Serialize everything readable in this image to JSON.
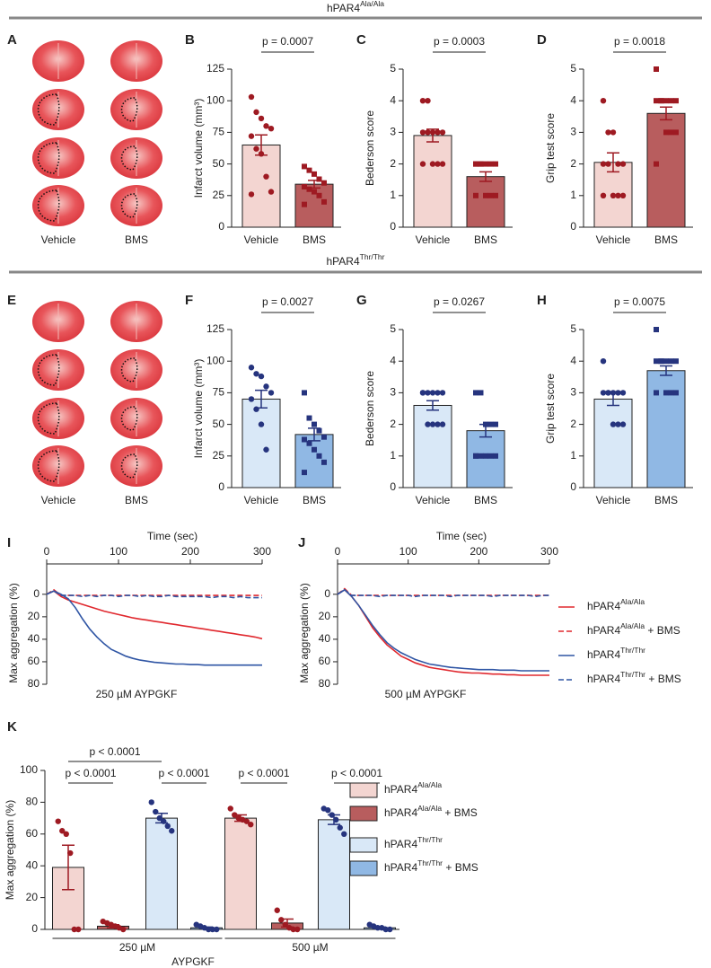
{
  "section_titles": [
    "hPAR4 Ala/Ala",
    "hPAR4 Thr/Thr"
  ],
  "image_panels": [
    {
      "panel": "A",
      "labels": [
        "Vehicle",
        "BMS"
      ]
    },
    {
      "panel": "E",
      "labels": [
        "Vehicle",
        "BMS"
      ]
    }
  ],
  "chart_data": [
    {
      "type": "bar",
      "panel": "B",
      "ylabel": "Infarct volume (mm³)",
      "categories": [
        "Vehicle",
        "BMS"
      ],
      "values": [
        65,
        34
      ],
      "errors": [
        8,
        3
      ],
      "points": [
        [
          103,
          91,
          86,
          80,
          78,
          72,
          62,
          58,
          40,
          28,
          26
        ],
        [
          48,
          45,
          42,
          38,
          35,
          32,
          30,
          28,
          25,
          20,
          18
        ]
      ],
      "colors": [
        "#f3d5d1",
        "#b85d5e"
      ],
      "point_color": "#9e1a22",
      "ylim": [
        0,
        125
      ],
      "yticks": [
        0,
        25,
        50,
        75,
        100,
        125
      ],
      "annotation": "p = 0.0007"
    },
    {
      "type": "bar",
      "panel": "C",
      "ylabel": "Bederson score",
      "categories": [
        "Vehicle",
        "BMS"
      ],
      "values": [
        2.9,
        1.6
      ],
      "errors": [
        0.2,
        0.15
      ],
      "points": [
        [
          4,
          4,
          3,
          3,
          3,
          3,
          3,
          2,
          2,
          2,
          2
        ],
        [
          2,
          2,
          2,
          2,
          2,
          2,
          2,
          1,
          1,
          1,
          1
        ]
      ],
      "colors": [
        "#f3d5d1",
        "#b85d5e"
      ],
      "point_color": "#9e1a22",
      "ylim": [
        0,
        5
      ],
      "yticks": [
        0,
        1,
        2,
        3,
        4,
        5
      ],
      "annotation": "p = 0.0003"
    },
    {
      "type": "bar",
      "panel": "D",
      "ylabel": "Grip test score",
      "categories": [
        "Vehicle",
        "BMS"
      ],
      "values": [
        2.05,
        3.6
      ],
      "errors": [
        0.3,
        0.2
      ],
      "points": [
        [
          4,
          3,
          3,
          2,
          2,
          2,
          2,
          1,
          1,
          1,
          1
        ],
        [
          5,
          4,
          4,
          4,
          4,
          4,
          4,
          3,
          3,
          3,
          2
        ]
      ],
      "colors": [
        "#f3d5d1",
        "#b85d5e"
      ],
      "point_color": "#9e1a22",
      "ylim": [
        0,
        5
      ],
      "yticks": [
        0,
        1,
        2,
        3,
        4,
        5
      ],
      "annotation": "p = 0.0018"
    },
    {
      "type": "bar",
      "panel": "F",
      "ylabel": "Infarct volume (mm³)",
      "categories": [
        "Vehicle",
        "BMS"
      ],
      "values": [
        70,
        42
      ],
      "errors": [
        7,
        5
      ],
      "points": [
        [
          95,
          90,
          88,
          80,
          75,
          70,
          62,
          50,
          30
        ],
        [
          75,
          55,
          50,
          45,
          40,
          38,
          35,
          30,
          25,
          20,
          12
        ]
      ],
      "colors": [
        "#d9e8f7",
        "#90b8e4"
      ],
      "point_color": "#26347e",
      "ylim": [
        0,
        125
      ],
      "yticks": [
        0,
        25,
        50,
        75,
        100,
        125
      ],
      "annotation": "p = 0.0027"
    },
    {
      "type": "bar",
      "panel": "G",
      "ylabel": "Bederson score",
      "categories": [
        "Vehicle",
        "BMS"
      ],
      "values": [
        2.6,
        1.8
      ],
      "errors": [
        0.15,
        0.2
      ],
      "points": [
        [
          3,
          3,
          3,
          3,
          3,
          3,
          2,
          2,
          2,
          2
        ],
        [
          3,
          3,
          2,
          2,
          2,
          1,
          1,
          1,
          1,
          1,
          1
        ]
      ],
      "colors": [
        "#d9e8f7",
        "#90b8e4"
      ],
      "point_color": "#26347e",
      "ylim": [
        0,
        5
      ],
      "yticks": [
        0,
        1,
        2,
        3,
        4,
        5
      ],
      "annotation": "p = 0.0267"
    },
    {
      "type": "bar",
      "panel": "H",
      "ylabel": "Grip test score",
      "categories": [
        "Vehicle",
        "BMS"
      ],
      "values": [
        2.8,
        3.7
      ],
      "errors": [
        0.2,
        0.15
      ],
      "points": [
        [
          4,
          3,
          3,
          3,
          3,
          3,
          3,
          2,
          2,
          2
        ],
        [
          5,
          4,
          4,
          4,
          4,
          4,
          4,
          3,
          3,
          3,
          3
        ]
      ],
      "colors": [
        "#d9e8f7",
        "#90b8e4"
      ],
      "point_color": "#26347e",
      "ylim": [
        0,
        5
      ],
      "yticks": [
        0,
        1,
        2,
        3,
        4,
        5
      ],
      "annotation": "p = 0.0075"
    },
    {
      "type": "line",
      "panel": "I",
      "xlabel": "Time  (sec)",
      "ylabel": "Max aggregation (%)",
      "subtitle": "250 µM AYPGKF",
      "x": [
        0,
        10,
        20,
        30,
        40,
        50,
        60,
        70,
        80,
        90,
        100,
        110,
        120,
        130,
        140,
        150,
        160,
        170,
        180,
        190,
        200,
        210,
        220,
        230,
        240,
        250,
        260,
        270,
        280,
        290,
        300
      ],
      "xlim": [
        0,
        300
      ],
      "xticks": [
        0,
        100,
        200,
        300
      ],
      "ylim": [
        -27,
        80
      ],
      "y_inverted": true,
      "yticks": [
        0,
        20,
        40,
        60,
        80
      ],
      "series": [
        {
          "color": "#e0282e",
          "dashed": false,
          "values": [
            0,
            -3,
            2,
            5,
            7,
            9,
            11,
            13,
            15,
            16.5,
            18,
            19.5,
            21,
            22,
            23,
            24,
            25,
            26,
            27,
            28,
            29,
            30,
            31,
            32,
            33,
            34,
            35,
            36,
            37,
            38,
            39.5
          ]
        },
        {
          "color": "#e0282e",
          "dashed": true,
          "values": [
            0,
            -4,
            1,
            1,
            1,
            1,
            1,
            1,
            1,
            1,
            1,
            1,
            1,
            1,
            1,
            1,
            1,
            1,
            1,
            1,
            1,
            1,
            1,
            1,
            1,
            1,
            1,
            1,
            1,
            1,
            1
          ]
        },
        {
          "color": "#2f55a4",
          "dashed": false,
          "values": [
            0,
            -3,
            0,
            4,
            12,
            22,
            31,
            38,
            44,
            49,
            52,
            55,
            57,
            58.5,
            59.5,
            60.5,
            61,
            61.5,
            62,
            62,
            62.5,
            62.5,
            63,
            63,
            63,
            63,
            63,
            63,
            63,
            63,
            63
          ]
        },
        {
          "color": "#2f55a4",
          "dashed": true,
          "values": [
            0,
            -3,
            1,
            1,
            1,
            2,
            1,
            2,
            1,
            1,
            2,
            1,
            1,
            2,
            1,
            2,
            2,
            1,
            2,
            2,
            2,
            2,
            2,
            3,
            2,
            2,
            3,
            2,
            3,
            3,
            3
          ]
        }
      ]
    },
    {
      "type": "line",
      "panel": "J",
      "xlabel": "Time  (sec)",
      "ylabel": "Max aggregation (%)",
      "subtitle": "500 µM AYPGKF",
      "x": [
        0,
        10,
        20,
        30,
        40,
        50,
        60,
        70,
        80,
        90,
        100,
        110,
        120,
        130,
        140,
        150,
        160,
        170,
        180,
        190,
        200,
        210,
        220,
        230,
        240,
        250,
        260,
        270,
        280,
        290,
        300
      ],
      "xlim": [
        0,
        300
      ],
      "xticks": [
        0,
        100,
        200,
        300
      ],
      "ylim": [
        -27,
        80
      ],
      "y_inverted": true,
      "yticks": [
        0,
        20,
        40,
        60,
        80
      ],
      "legend": "right",
      "series": [
        {
          "name": "hPAR4 Ala/Ala",
          "color": "#e0282e",
          "dashed": false,
          "values": [
            0,
            -4,
            2,
            10,
            20,
            30,
            38,
            45,
            50,
            55,
            58,
            61,
            63,
            65,
            66,
            67,
            68,
            69,
            69.5,
            70,
            70,
            70.5,
            71,
            71,
            71.5,
            71.5,
            72,
            72,
            72,
            72,
            72
          ]
        },
        {
          "name": "hPAR4 Ala/Ala + BMS",
          "color": "#e0282e",
          "dashed": true,
          "values": [
            0,
            -5,
            1,
            1,
            1,
            1,
            1,
            1,
            1,
            1,
            1,
            1,
            1,
            1,
            1,
            1,
            1,
            1,
            1,
            1,
            1,
            1,
            1,
            1,
            1,
            1,
            1,
            1,
            1,
            1,
            1
          ]
        },
        {
          "name": "hPAR4 Thr/Thr",
          "color": "#2f55a4",
          "dashed": false,
          "values": [
            0,
            -4,
            2,
            10,
            19,
            28,
            36,
            43,
            48,
            52,
            55,
            58,
            60,
            62,
            63,
            64,
            65,
            65.5,
            66,
            66.5,
            67,
            67,
            67,
            67.5,
            67.5,
            67.5,
            68,
            68,
            68,
            68,
            68
          ]
        },
        {
          "name": "hPAR4 Thr/Thr + BMS",
          "color": "#2f55a4",
          "dashed": true,
          "values": [
            0,
            -4,
            1,
            1,
            1,
            1,
            2,
            1,
            1,
            1,
            1,
            2,
            1,
            1,
            1,
            1,
            2,
            1,
            1,
            1,
            1,
            1,
            2,
            1,
            1,
            1,
            1,
            1,
            2,
            1,
            1
          ]
        }
      ]
    },
    {
      "type": "grouped_bar",
      "panel": "K",
      "ylabel": "Max aggregation (%)",
      "categories": [
        "250 µM",
        "500 µM"
      ],
      "xlabel": "AYPGKF",
      "ylim": [
        0,
        100
      ],
      "yticks": [
        0,
        20,
        40,
        60,
        80,
        100
      ],
      "annotations": [
        "p < 0.0001",
        "p < 0.0001",
        "p < 0.0001",
        "p < 0.0001",
        "p < 0.0001"
      ],
      "series": [
        {
          "name": "hPAR4 Ala/Ala",
          "color": "#f3d5d1",
          "point_color": "#9e1a22",
          "text_color": "#c0262d",
          "values": [
            39,
            70
          ],
          "errors": [
            14,
            2
          ],
          "points": [
            [
              68,
              62,
              60,
              48,
              0,
              0
            ],
            [
              76,
              72,
              70,
              69,
              68,
              66
            ]
          ]
        },
        {
          "name": "hPAR4 Ala/Ala + BMS",
          "color": "#b85d5e",
          "point_color": "#9e1a22",
          "text_color": "#c0262d",
          "values": [
            2,
            4
          ],
          "errors": [
            1,
            2.5
          ],
          "points": [
            [
              5,
              4,
              3,
              2,
              1,
              0
            ],
            [
              12,
              6,
              3,
              1,
              0,
              0
            ]
          ]
        },
        {
          "name": "hPAR4 Thr/Thr",
          "color": "#d9e8f7",
          "point_color": "#26347e",
          "text_color": "#2b52a8",
          "values": [
            70,
            69
          ],
          "errors": [
            3,
            3
          ],
          "points": [
            [
              80,
              74,
              70,
              68,
              65,
              62
            ],
            [
              76,
              75,
              72,
              69,
              64,
              60
            ]
          ]
        },
        {
          "name": "hPAR4 Thr/Thr + BMS",
          "color": "#90b8e4",
          "point_color": "#26347e",
          "text_color": "#2b52a8",
          "values": [
            1,
            1
          ],
          "errors": [
            0.5,
            0.5
          ],
          "points": [
            [
              3,
              2,
              1,
              0,
              0,
              0
            ],
            [
              3,
              2,
              1,
              1,
              0,
              0
            ]
          ]
        }
      ]
    }
  ]
}
